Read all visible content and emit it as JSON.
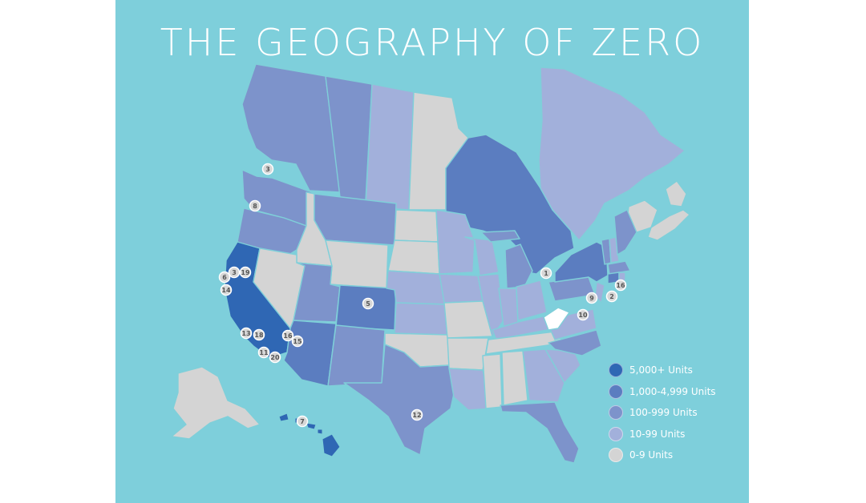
{
  "title": "THE GEOGRAPHY OF ZERO",
  "colors": {
    "background": "#7ecfdb",
    "tier_5000_plus": "#2f67b4",
    "tier_1000_4999": "#5b7dc0",
    "tier_100_999": "#7d93cb",
    "tier_10_99": "#a2b0db",
    "tier_0_9": "#d4d4d4",
    "pin": "#d7d7d7"
  },
  "legend": [
    {
      "label": "5,000+ Units",
      "color": "#2f67b4"
    },
    {
      "label": "1,000-4,999 Units",
      "color": "#5b7dc0"
    },
    {
      "label": "100-999 Units",
      "color": "#7d93cb"
    },
    {
      "label": "10-99 Units",
      "color": "#a2b0db"
    },
    {
      "label": "0-9 Units",
      "color": "#d4d4d4"
    }
  ],
  "markers": [
    "3",
    "8",
    "3",
    "19",
    "6",
    "14",
    "13",
    "18",
    "11",
    "20",
    "16",
    "15",
    "5",
    "7",
    "12",
    "1",
    "16",
    "2",
    "9",
    "10"
  ]
}
